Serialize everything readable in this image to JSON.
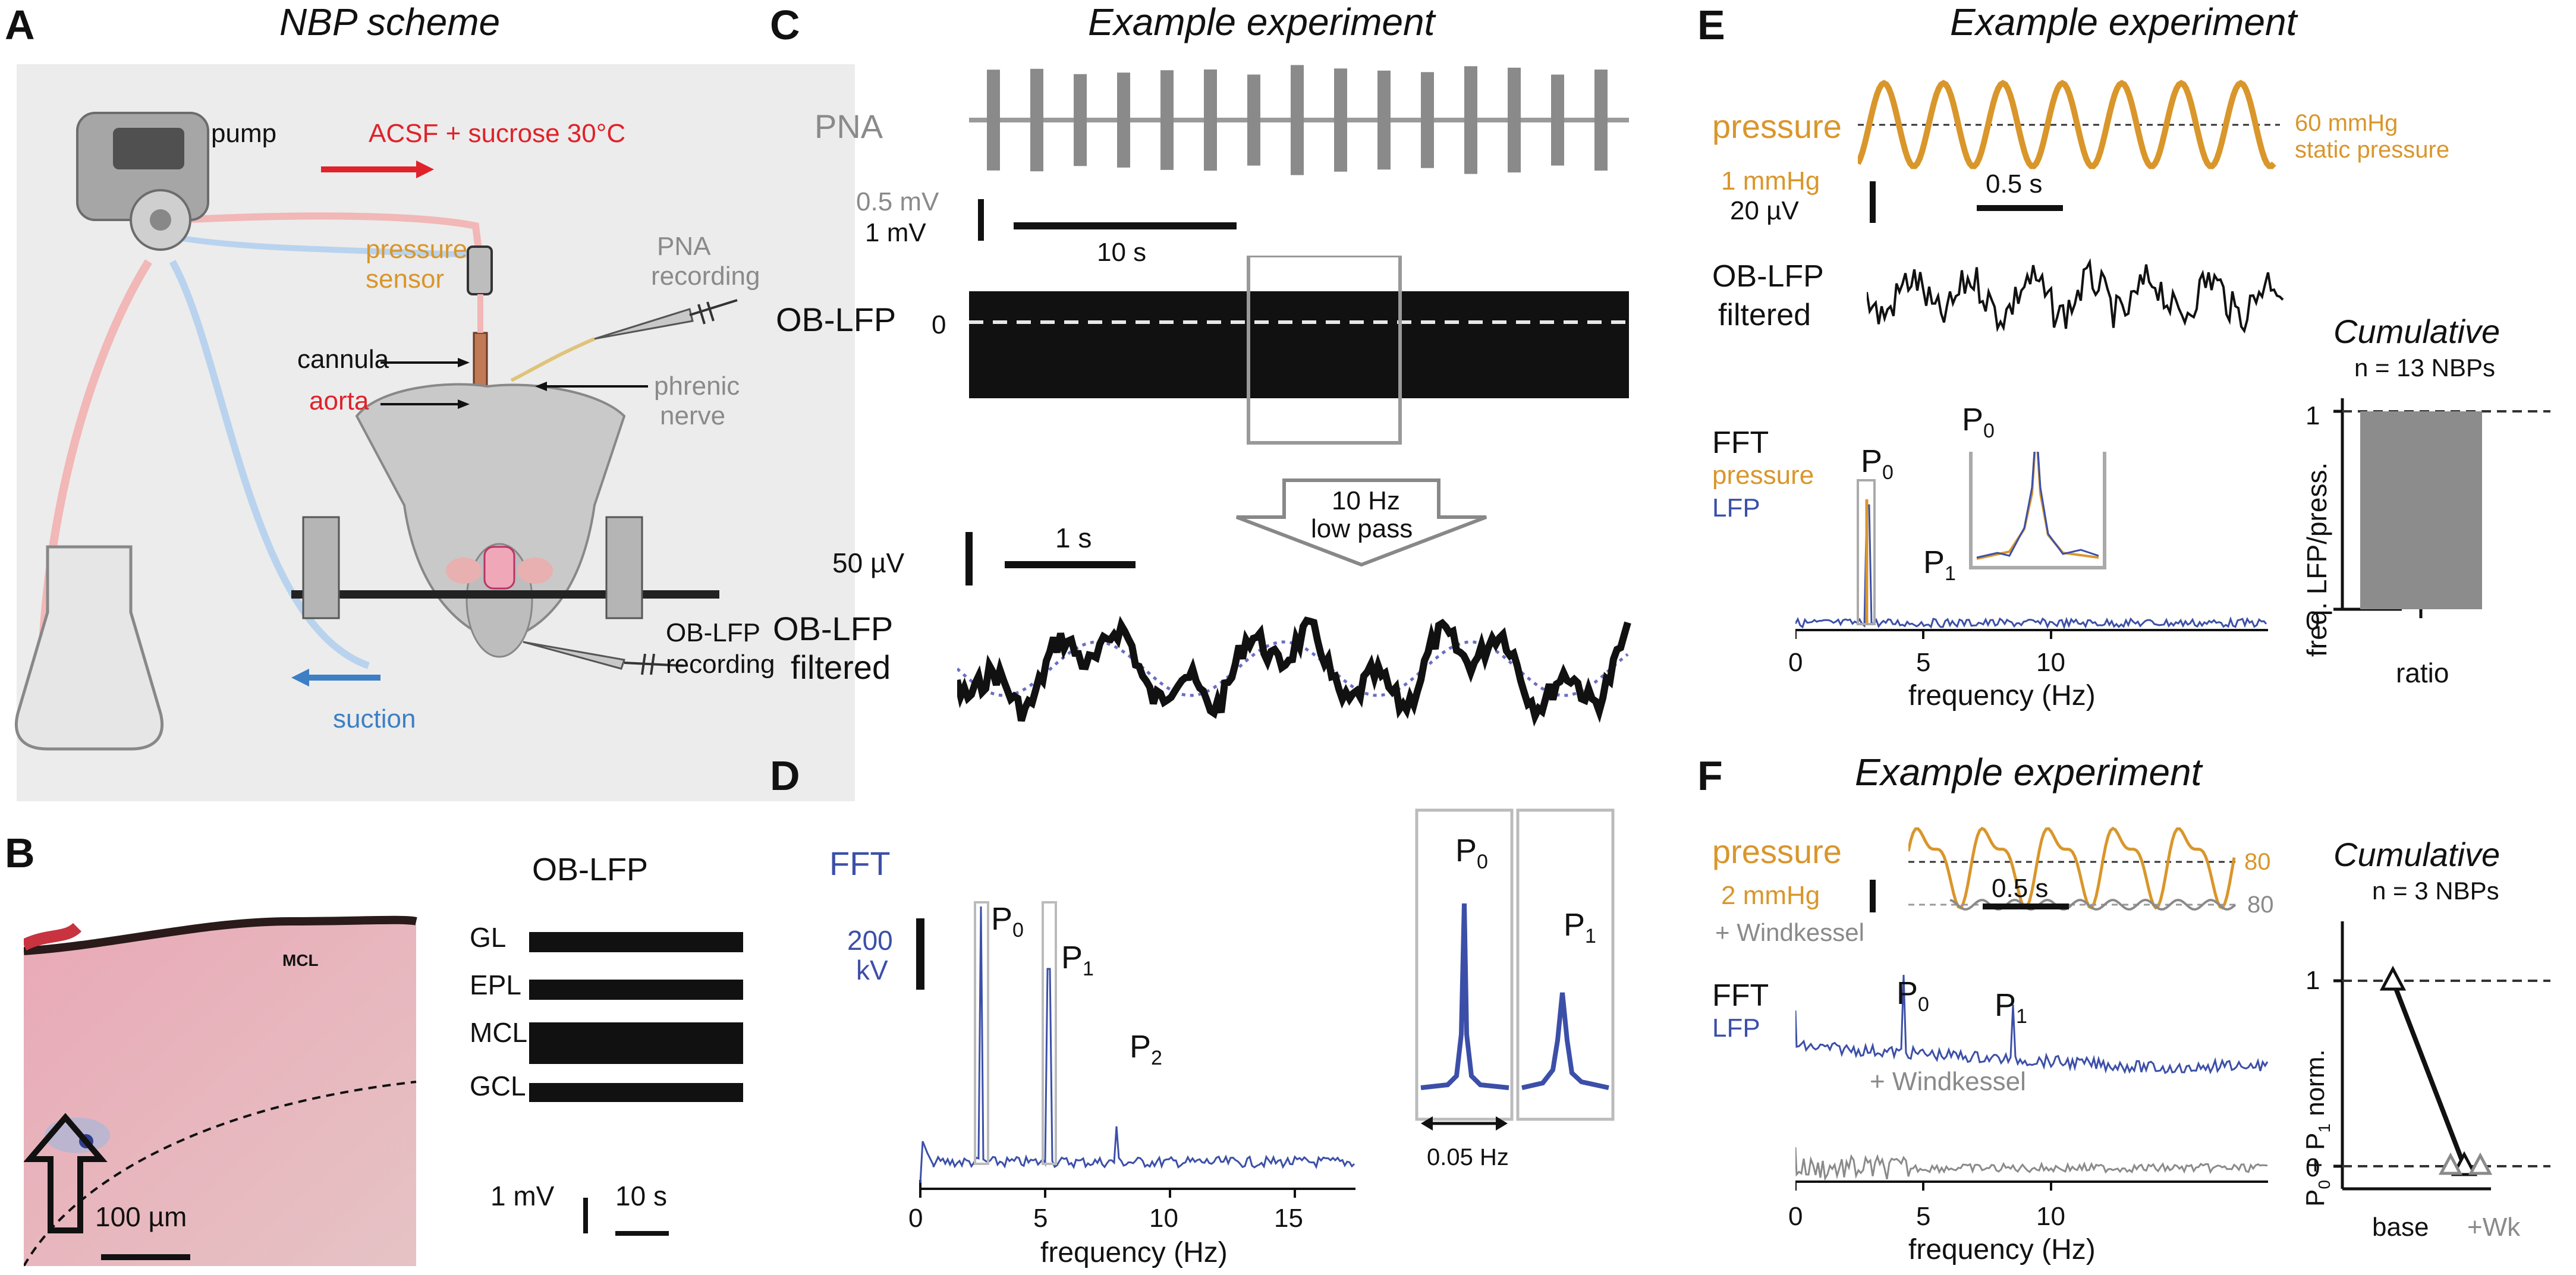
{
  "panels": {
    "A": {
      "letter": "A",
      "title": "NBP scheme",
      "pump": "pump",
      "acsf": "ACSF + sucrose 30°C",
      "pressure_sensor_1": "pressure",
      "pressure_sensor_2": "sensor",
      "pna_rec_1": "PNA",
      "pna_rec_2": "recording",
      "cannula": "cannula",
      "aorta": "aorta",
      "phrenic_1": "phrenic",
      "phrenic_2": "nerve",
      "oblfp_rec_1": "OB-LFP",
      "oblfp_rec_2": "recording",
      "suction": "suction"
    },
    "B": {
      "letter": "B",
      "title": "OB-LFP",
      "layers": [
        "GL",
        "EPL",
        "MCL",
        "GCL"
      ],
      "mcl_label": "MCL",
      "scale_um": "100 µm",
      "scale_mv": "1 mV",
      "scale_s": "10 s"
    },
    "C": {
      "letter": "C",
      "title": "Example experiment",
      "pna": "PNA",
      "scale_05mv": "0.5 mV",
      "scale_1mv": "1 mV",
      "scale_10s": "10 s",
      "oblfp": "OB-LFP",
      "zero": "0",
      "lowpass_1": "10 Hz",
      "lowpass_2": "low pass",
      "scale_50uv": "50 µV",
      "scale_1s": "1 s",
      "filtered_1": "OB-LFP",
      "filtered_2": "filtered"
    },
    "D": {
      "letter": "D",
      "fft": "FFT",
      "scale_200": "200",
      "scale_kv": "kV",
      "p0": "P",
      "p1": "P",
      "p2": "P",
      "sub0": "0",
      "sub1": "1",
      "sub2": "2",
      "xlabel": "frequency (Hz)",
      "xticks": [
        "0",
        "5",
        "10",
        "15"
      ],
      "inset_scale": "0.05 Hz"
    },
    "E": {
      "letter": "E",
      "title": "Example experiment",
      "pressure": "pressure",
      "static_1": "60 mmHg",
      "static_2": "static pressure",
      "scale_mmhg": "1 mmHg",
      "scale_uv": "20 µV",
      "scale_s": "0.5 s",
      "oblfp_1": "OB-LFP",
      "oblfp_2": "filtered",
      "fft": "FFT",
      "fft_pressure": "pressure",
      "fft_lfp": "LFP",
      "xlabel": "frequency (Hz)",
      "xticks": [
        "0",
        "5",
        "10"
      ],
      "cum_title": "Cumulative",
      "cum_n": "n = 13 NBPs",
      "cum_ylabel": "freq. LFP/press.",
      "cum_xlabel": "ratio",
      "cum_yticks": [
        "0",
        "1"
      ]
    },
    "F": {
      "letter": "F",
      "title": "Example experiment",
      "pressure": "pressure",
      "val80a": "80",
      "val80b": "80",
      "scale_mmhg": "2 mmHg",
      "scale_s": "0.5 s",
      "windkessel": "+ Windkessel",
      "fft": "FFT",
      "fft_lfp": "LFP",
      "fft_wk": "+ Windkessel",
      "xlabel": "frequency (Hz)",
      "xticks": [
        "0",
        "5",
        "10"
      ],
      "cum_title": "Cumulative",
      "cum_n": "n = 3 NBPs",
      "cum_ylabel": "P0 + P1 norm.",
      "cum_xticks": [
        "base",
        "+Wk"
      ],
      "cum_yticks": [
        "0",
        "1"
      ]
    }
  },
  "chart_data": [
    {
      "type": "bar",
      "title": "Cumulative",
      "subtitle": "n = 13 NBPs",
      "categories": [
        "ratio"
      ],
      "values": [
        1.0
      ],
      "ylabel": "freq. LFP/press.",
      "ylim": [
        0,
        1.1
      ]
    },
    {
      "type": "line",
      "title": "Cumulative",
      "subtitle": "n = 3 NBPs",
      "categories": [
        "base",
        "+Wk"
      ],
      "series": [
        {
          "values": [
            1.0,
            0.0
          ]
        }
      ],
      "ylabel": "P0 + P1 norm.",
      "ylim": [
        -0.1,
        1.1
      ]
    }
  ],
  "colors": {
    "orange": "#d9962b",
    "blue": "#3c4fa8",
    "gray": "#8a8a8a",
    "red": "#e0222a",
    "lightblue": "#3d7fc4"
  }
}
